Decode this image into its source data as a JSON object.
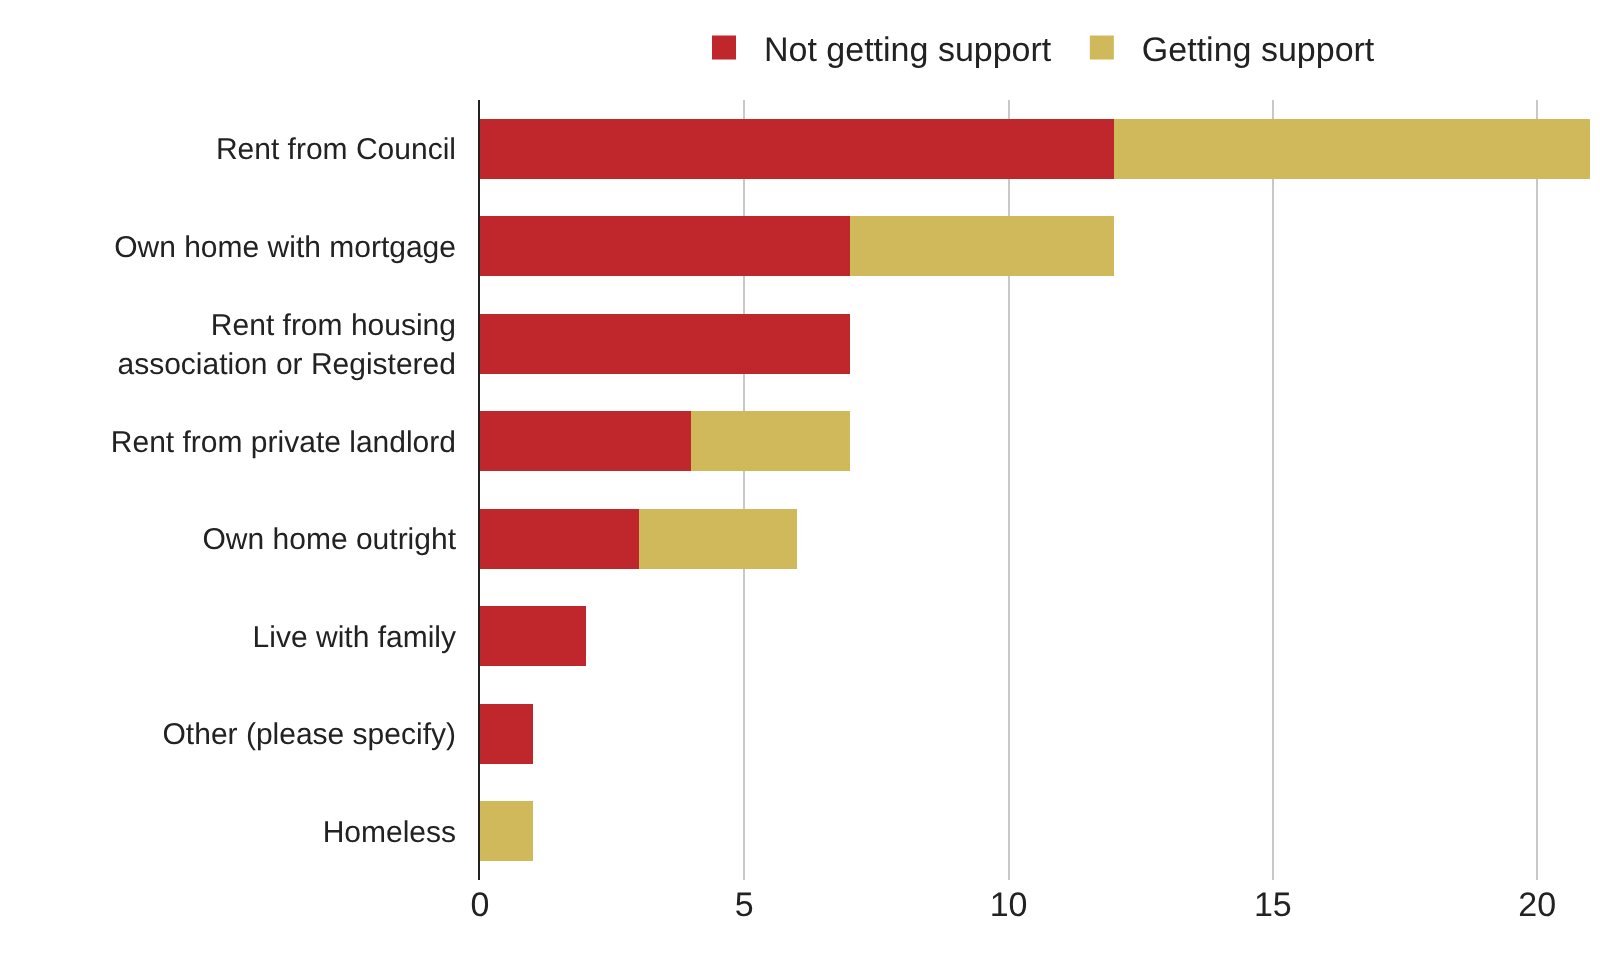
{
  "chart_data": {
    "type": "bar",
    "orientation": "horizontal",
    "stacked": true,
    "categories": [
      "Rent from Council",
      "Own home with mortgage",
      "Rent from housing association or Registered",
      "Rent from private landlord",
      "Own home outright",
      "Live with family",
      "Other (please specify)",
      "Homeless"
    ],
    "series": [
      {
        "name": "Not getting support",
        "color": "#c0272d",
        "values": [
          12,
          7,
          7,
          4,
          3,
          2,
          1,
          0
        ]
      },
      {
        "name": "Getting support",
        "color": "#cfb95b",
        "values": [
          9,
          5,
          0,
          3,
          3,
          0,
          0,
          1
        ]
      }
    ],
    "xlim": [
      0,
      21
    ],
    "xticks": [
      0,
      5,
      10,
      15,
      20
    ],
    "grid": "x",
    "legend": "top"
  }
}
